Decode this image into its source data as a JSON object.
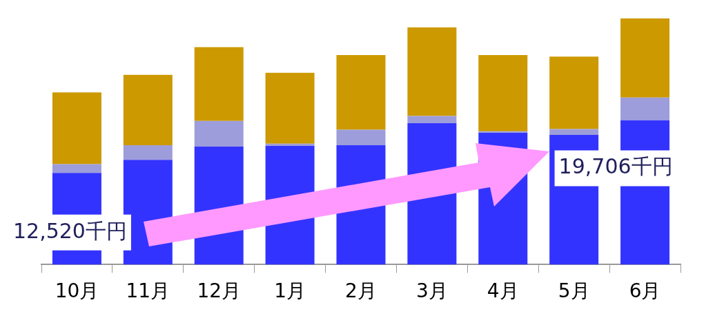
{
  "chart_data": {
    "type": "bar",
    "stacked": true,
    "categories": [
      "10月",
      "11月",
      "12月",
      "1月",
      "2月",
      "3月",
      "4月",
      "5月",
      "6月"
    ],
    "series": [
      {
        "color": "#3333ff",
        "values": [
          12520,
          14300,
          16100,
          16200,
          16300,
          19300,
          18000,
          17700,
          19706
        ],
        "value_labels": [
          "12,520千円",
          null,
          null,
          null,
          null,
          null,
          null,
          null,
          "19,706千円"
        ]
      },
      {
        "color": "#9d9ddb",
        "values": [
          1200,
          2000,
          3500,
          300,
          2100,
          1000,
          200,
          800,
          3100
        ]
      },
      {
        "color": "#cc9900",
        "values": [
          9800,
          9600,
          10100,
          9700,
          10200,
          12100,
          10400,
          9900,
          10800
        ]
      }
    ],
    "legend": false,
    "grid": false
  }
}
